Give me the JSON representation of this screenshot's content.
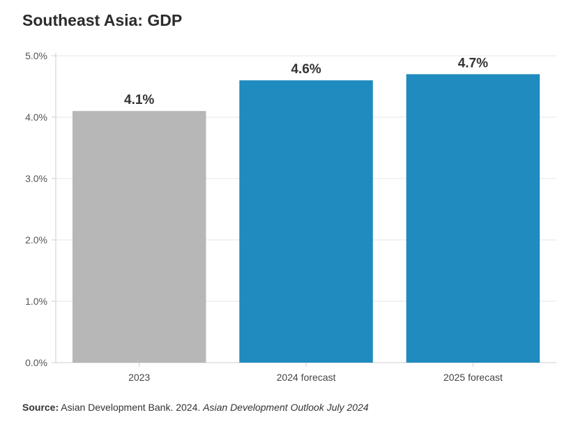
{
  "title": "Southeast Asia: GDP",
  "source": {
    "label": "Source:",
    "text": "Asian Development Bank. 2024.",
    "publication": "Asian Development Outlook July 2024"
  },
  "colors": {
    "actual": "#b7b7b7",
    "forecast": "#1f8bbf",
    "grid": "#e6e6e6",
    "axis": "#cccccc"
  },
  "chart_data": {
    "type": "bar",
    "title": "Southeast Asia: GDP",
    "categories": [
      "2023",
      "2024 forecast",
      "2025 forecast"
    ],
    "values": [
      4.1,
      4.6,
      4.7
    ],
    "data_labels": [
      "4.1%",
      "4.6%",
      "4.7%"
    ],
    "bar_colors": [
      "#b7b7b7",
      "#1f8bbf",
      "#1f8bbf"
    ],
    "y_ticks": [
      0,
      1,
      2,
      3,
      4,
      5
    ],
    "y_tick_labels": [
      "0.0%",
      "1.0%",
      "2.0%",
      "3.0%",
      "4.0%",
      "5.0%"
    ],
    "ylim": [
      0,
      5
    ],
    "xlabel": "",
    "ylabel": "",
    "grid": true,
    "legend": "none"
  }
}
